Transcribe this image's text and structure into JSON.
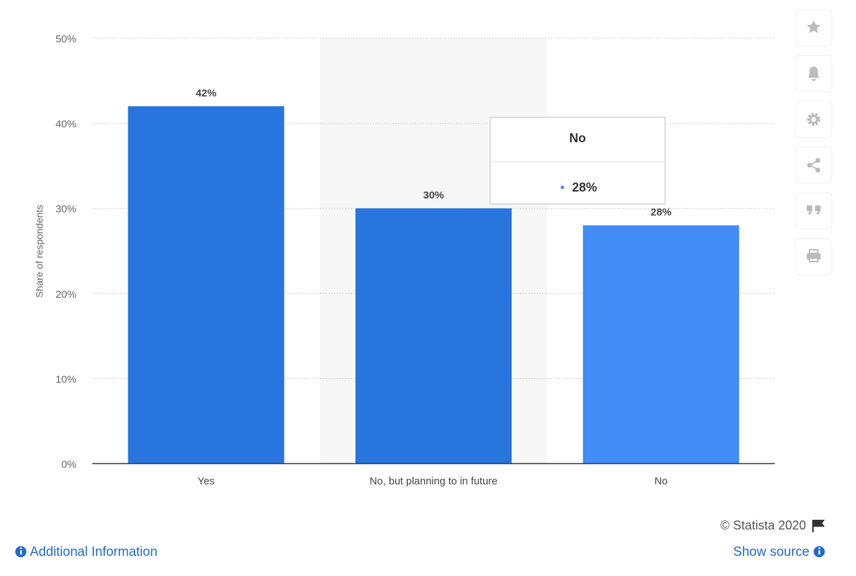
{
  "chart_data": {
    "type": "bar",
    "ylabel": "Share of respondents",
    "categories": [
      "Yes",
      "No, but planning to in future",
      "No"
    ],
    "values": [
      42,
      30,
      28
    ],
    "value_labels": [
      "42%",
      "30%",
      "28%"
    ],
    "colors": [
      "#2876dd",
      "#2876dd",
      "#418cf5"
    ],
    "ylim": [
      0,
      50
    ],
    "yticks": [
      {
        "value": 0,
        "label": "0%"
      },
      {
        "value": 10,
        "label": "10%"
      },
      {
        "value": 20,
        "label": "20%"
      },
      {
        "value": 30,
        "label": "30%"
      },
      {
        "value": 40,
        "label": "40%"
      },
      {
        "value": 50,
        "label": "50%"
      }
    ],
    "grid": true
  },
  "footer": {
    "copyright": "© Statista 2020",
    "additional_info": "Additional Information",
    "show_source": "Show source"
  }
}
